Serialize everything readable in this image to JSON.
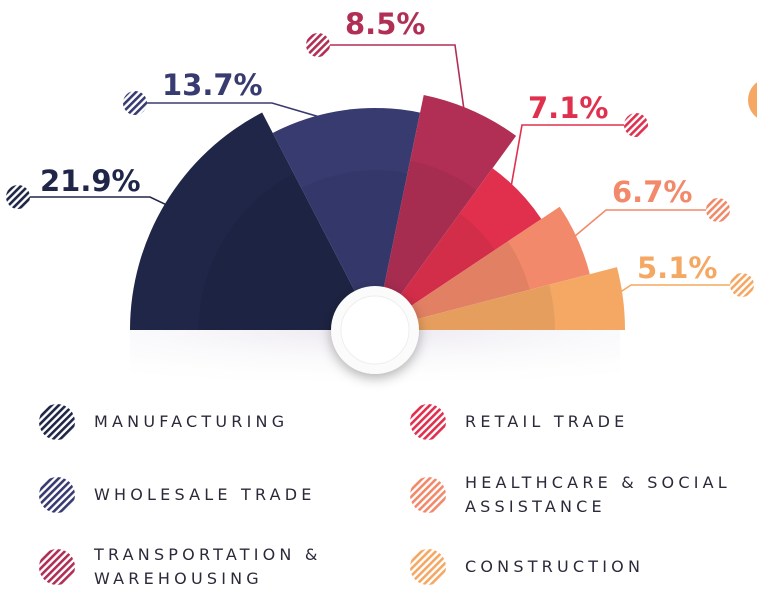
{
  "chart_data": {
    "type": "pie",
    "categories": [
      "MANUFACTURING",
      "WHOLESALE TRADE",
      "TRANSPORTATION & WAREHOUSING",
      "RETAIL TRADE",
      "HEALTHCARE & SOCIAL ASSISTANCE",
      "CONSTRUCTION"
    ],
    "values": [
      21.9,
      13.7,
      8.5,
      7.1,
      6.7,
      5.1
    ],
    "value_labels": [
      "21.9%",
      "13.7%",
      "8.5%",
      "7.1%",
      "6.7%",
      "5.1%"
    ],
    "colors": [
      "#1f2647",
      "#383b70",
      "#b12f55",
      "#e0304e",
      "#f1896a",
      "#f5a864"
    ]
  }
}
